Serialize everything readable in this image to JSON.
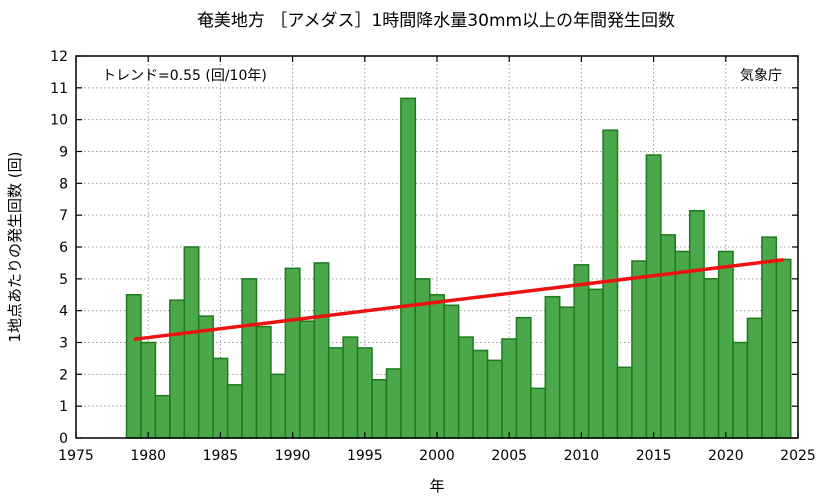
{
  "chart_data": {
    "type": "bar",
    "title": "奄美地方 ［アメダス］1時間降水量30mm以上の年間発生回数",
    "xlabel": "年",
    "ylabel": "1地点あたりの発生回数 (回)",
    "trend_label": "トレンド=0.55 (回/10年)",
    "source_label": "気象庁",
    "xlim": [
      1975,
      2025
    ],
    "ylim": [
      0,
      12
    ],
    "x_ticks": [
      1975,
      1980,
      1985,
      1990,
      1995,
      2000,
      2005,
      2010,
      2015,
      2020,
      2025
    ],
    "y_ticks": [
      0,
      1,
      2,
      3,
      4,
      5,
      6,
      7,
      8,
      9,
      10,
      11,
      12
    ],
    "grid": true,
    "years": [
      1979,
      1980,
      1981,
      1982,
      1983,
      1984,
      1985,
      1986,
      1987,
      1988,
      1989,
      1990,
      1991,
      1992,
      1993,
      1994,
      1995,
      1996,
      1997,
      1998,
      1999,
      2000,
      2001,
      2002,
      2003,
      2004,
      2005,
      2006,
      2007,
      2008,
      2009,
      2010,
      2011,
      2012,
      2013,
      2014,
      2015,
      2016,
      2017,
      2018,
      2019,
      2020,
      2021,
      2022,
      2023,
      2024
    ],
    "values": [
      4.5,
      3.0,
      1.33,
      4.33,
      6.0,
      3.83,
      2.5,
      1.67,
      5.0,
      3.5,
      2.0,
      5.33,
      3.67,
      5.5,
      2.83,
      3.17,
      2.83,
      1.83,
      2.17,
      10.67,
      5.0,
      4.5,
      4.17,
      3.17,
      2.75,
      2.44,
      3.11,
      3.78,
      1.56,
      4.44,
      4.11,
      5.44,
      4.67,
      9.67,
      2.22,
      5.56,
      8.89,
      6.38,
      5.86,
      7.14,
      5.0,
      5.86,
      3.0,
      3.76,
      6.31,
      5.61
    ],
    "trend": {
      "x": [
        1979,
        2024
      ],
      "y": [
        3.1,
        5.6
      ]
    },
    "colors": {
      "bar_fill": "#4aa84a",
      "bar_edge": "#1d7a1d",
      "trend": "#ee1111"
    }
  }
}
